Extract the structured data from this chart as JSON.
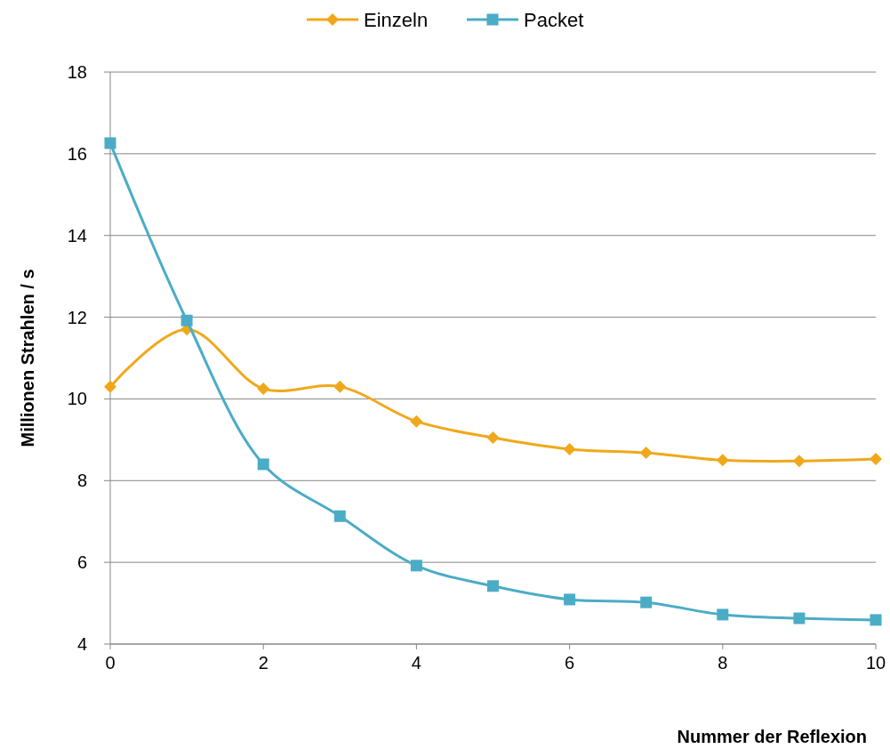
{
  "chart_data": {
    "type": "line",
    "xlabel": "Nummer der Reflexion",
    "ylabel": "Millionen Strahlen / s",
    "x": [
      0,
      1,
      2,
      3,
      4,
      5,
      6,
      7,
      8,
      9,
      10
    ],
    "xlim": [
      0,
      10
    ],
    "xticks": [
      0,
      2,
      4,
      6,
      8,
      10
    ],
    "ylim": [
      4,
      18
    ],
    "yticks": [
      4,
      6,
      8,
      10,
      12,
      14,
      16,
      18
    ],
    "grid": "y",
    "legend": "top",
    "line_style": "solid",
    "series": [
      {
        "name": "Einzeln",
        "color": "#f0a81a",
        "marker": "diamond",
        "values": [
          10.3,
          11.7,
          10.25,
          10.3,
          9.45,
          9.05,
          8.77,
          8.68,
          8.5,
          8.48,
          8.53
        ]
      },
      {
        "name": "Packet",
        "color": "#4bacc6",
        "marker": "square",
        "values": [
          16.26,
          11.92,
          8.4,
          7.13,
          5.92,
          5.42,
          5.09,
          5.02,
          4.72,
          4.63,
          4.59
        ]
      }
    ]
  }
}
